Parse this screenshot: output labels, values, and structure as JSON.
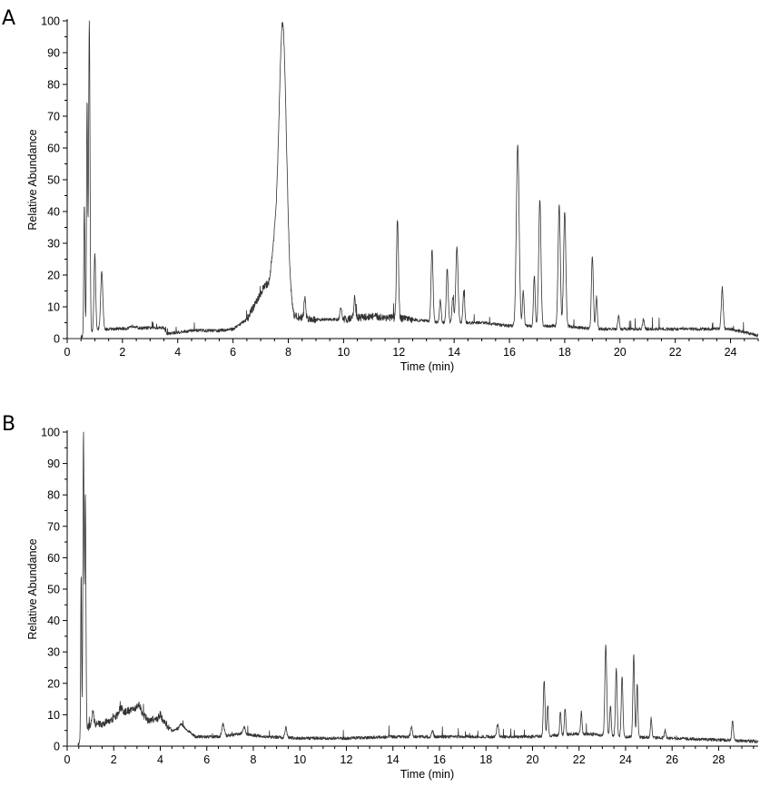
{
  "panels": {
    "A": {
      "letter": "A"
    },
    "B": {
      "letter": "B"
    }
  },
  "chart_data": [
    {
      "type": "line",
      "panel": "A",
      "xlabel": "Time (min)",
      "ylabel": "Relative Abundance",
      "xlim": [
        0,
        25
      ],
      "ylim": [
        0,
        100
      ],
      "x_ticks": [
        0,
        2,
        4,
        6,
        8,
        10,
        12,
        14,
        16,
        18,
        20,
        22,
        24
      ],
      "y_ticks": [
        0,
        10,
        20,
        30,
        40,
        50,
        60,
        70,
        80,
        90,
        100
      ],
      "grid": false,
      "baseline": [
        [
          0.55,
          0.5
        ],
        [
          0.6,
          2
        ],
        [
          1.5,
          3
        ],
        [
          3.5,
          3.5
        ],
        [
          3.6,
          1.5
        ],
        [
          4.5,
          2.5
        ],
        [
          5.5,
          2.5
        ],
        [
          6.0,
          3
        ],
        [
          6.5,
          6
        ],
        [
          7.0,
          14
        ],
        [
          7.3,
          18
        ],
        [
          7.5,
          30
        ],
        [
          8.2,
          7
        ],
        [
          9.0,
          6
        ],
        [
          10.0,
          6
        ],
        [
          11.0,
          7
        ],
        [
          12.5,
          6
        ],
        [
          13.5,
          5
        ],
        [
          15.0,
          5
        ],
        [
          16.0,
          4
        ],
        [
          17.0,
          4
        ],
        [
          18.0,
          4
        ],
        [
          19.0,
          3
        ],
        [
          20.0,
          3
        ],
        [
          22.0,
          3
        ],
        [
          24.0,
          3
        ],
        [
          25.0,
          1
        ]
      ],
      "peaks": [
        {
          "x": 0.62,
          "y": 42,
          "w": 0.02
        },
        {
          "x": 0.72,
          "y": 75,
          "w": 0.02
        },
        {
          "x": 0.8,
          "y": 100,
          "w": 0.025
        },
        {
          "x": 1.0,
          "y": 27,
          "w": 0.03
        },
        {
          "x": 1.25,
          "y": 21,
          "w": 0.04
        },
        {
          "x": 2.4,
          "y": 4,
          "w": 0.08
        },
        {
          "x": 4.7,
          "y": 2.5,
          "w": 0.2
        },
        {
          "x": 7.1,
          "y": 16,
          "w": 0.05
        },
        {
          "x": 7.8,
          "y": 99,
          "w": 0.13
        },
        {
          "x": 8.6,
          "y": 13,
          "w": 0.03
        },
        {
          "x": 9.9,
          "y": 10,
          "w": 0.03
        },
        {
          "x": 10.4,
          "y": 13,
          "w": 0.03
        },
        {
          "x": 11.95,
          "y": 38,
          "w": 0.035
        },
        {
          "x": 13.2,
          "y": 28,
          "w": 0.035
        },
        {
          "x": 13.5,
          "y": 12,
          "w": 0.03
        },
        {
          "x": 13.75,
          "y": 22,
          "w": 0.035
        },
        {
          "x": 13.95,
          "y": 13,
          "w": 0.03
        },
        {
          "x": 14.1,
          "y": 29,
          "w": 0.04
        },
        {
          "x": 14.35,
          "y": 15,
          "w": 0.03
        },
        {
          "x": 16.3,
          "y": 61,
          "w": 0.05
        },
        {
          "x": 16.5,
          "y": 15,
          "w": 0.03
        },
        {
          "x": 16.9,
          "y": 20,
          "w": 0.03
        },
        {
          "x": 17.1,
          "y": 44,
          "w": 0.04
        },
        {
          "x": 17.8,
          "y": 42,
          "w": 0.04
        },
        {
          "x": 18.0,
          "y": 40,
          "w": 0.04
        },
        {
          "x": 19.0,
          "y": 26,
          "w": 0.035
        },
        {
          "x": 19.15,
          "y": 13,
          "w": 0.03
        },
        {
          "x": 19.95,
          "y": 7,
          "w": 0.03
        },
        {
          "x": 20.85,
          "y": 6,
          "w": 0.03
        },
        {
          "x": 23.7,
          "y": 16,
          "w": 0.035
        }
      ]
    },
    {
      "type": "line",
      "panel": "B",
      "xlabel": "Time (min)",
      "ylabel": "Relative Abundance",
      "xlim": [
        0,
        29.7
      ],
      "ylim": [
        0,
        100
      ],
      "x_ticks": [
        0,
        2,
        4,
        6,
        8,
        10,
        12,
        14,
        16,
        18,
        20,
        22,
        24,
        26,
        28
      ],
      "y_ticks": [
        0,
        10,
        20,
        30,
        40,
        50,
        60,
        70,
        80,
        90,
        100
      ],
      "grid": false,
      "baseline": [
        [
          0.5,
          0.5
        ],
        [
          0.6,
          3
        ],
        [
          1.0,
          7
        ],
        [
          1.5,
          7
        ],
        [
          2.0,
          9
        ],
        [
          2.5,
          11
        ],
        [
          3.0,
          12
        ],
        [
          3.5,
          8
        ],
        [
          4.0,
          9
        ],
        [
          4.5,
          5
        ],
        [
          5.0,
          6
        ],
        [
          5.5,
          3
        ],
        [
          6.5,
          3
        ],
        [
          7.5,
          4
        ],
        [
          8.5,
          3
        ],
        [
          10.0,
          2.5
        ],
        [
          12.0,
          2.5
        ],
        [
          14.0,
          3
        ],
        [
          16.0,
          3
        ],
        [
          18.0,
          3
        ],
        [
          20.0,
          3
        ],
        [
          22.0,
          4
        ],
        [
          24.0,
          3
        ],
        [
          26.0,
          2.5
        ],
        [
          28.0,
          2
        ],
        [
          29.7,
          1.5
        ]
      ],
      "peaks": [
        {
          "x": 0.6,
          "y": 55,
          "w": 0.02
        },
        {
          "x": 0.7,
          "y": 100,
          "w": 0.025
        },
        {
          "x": 0.78,
          "y": 80,
          "w": 0.025
        },
        {
          "x": 1.1,
          "y": 11,
          "w": 0.04
        },
        {
          "x": 2.3,
          "y": 12,
          "w": 0.08
        },
        {
          "x": 3.1,
          "y": 13,
          "w": 0.08
        },
        {
          "x": 4.0,
          "y": 10,
          "w": 0.06
        },
        {
          "x": 4.9,
          "y": 7,
          "w": 0.06
        },
        {
          "x": 6.7,
          "y": 7,
          "w": 0.05
        },
        {
          "x": 7.6,
          "y": 6,
          "w": 0.05
        },
        {
          "x": 9.4,
          "y": 6,
          "w": 0.04
        },
        {
          "x": 14.8,
          "y": 6,
          "w": 0.04
        },
        {
          "x": 15.7,
          "y": 5,
          "w": 0.04
        },
        {
          "x": 18.5,
          "y": 7,
          "w": 0.04
        },
        {
          "x": 20.5,
          "y": 21,
          "w": 0.035
        },
        {
          "x": 20.65,
          "y": 13,
          "w": 0.03
        },
        {
          "x": 21.2,
          "y": 11,
          "w": 0.03
        },
        {
          "x": 21.4,
          "y": 12,
          "w": 0.03
        },
        {
          "x": 22.1,
          "y": 11,
          "w": 0.03
        },
        {
          "x": 23.15,
          "y": 32,
          "w": 0.04
        },
        {
          "x": 23.35,
          "y": 13,
          "w": 0.03
        },
        {
          "x": 23.6,
          "y": 25,
          "w": 0.035
        },
        {
          "x": 23.85,
          "y": 22,
          "w": 0.035
        },
        {
          "x": 24.35,
          "y": 29,
          "w": 0.035
        },
        {
          "x": 24.5,
          "y": 20,
          "w": 0.03
        },
        {
          "x": 25.1,
          "y": 9,
          "w": 0.03
        },
        {
          "x": 25.7,
          "y": 5,
          "w": 0.03
        },
        {
          "x": 28.6,
          "y": 8,
          "w": 0.035
        }
      ]
    }
  ]
}
